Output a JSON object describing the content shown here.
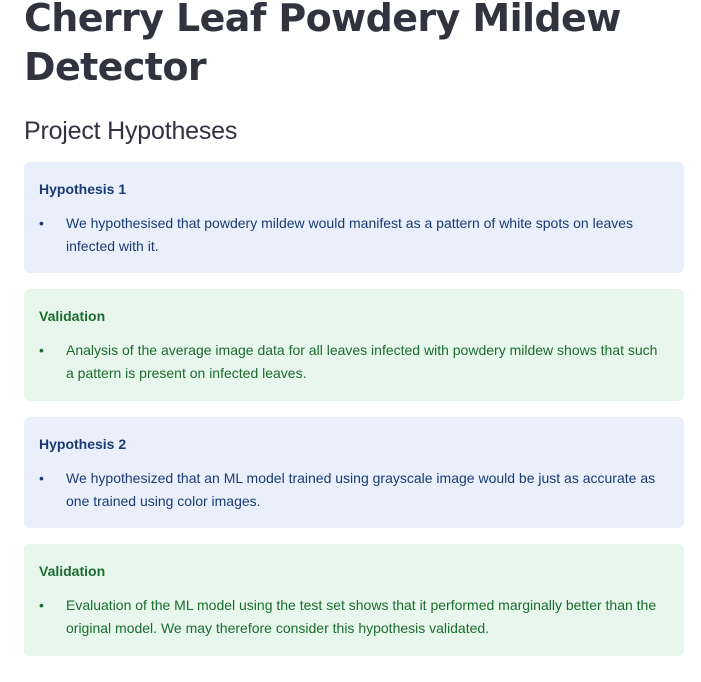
{
  "page": {
    "title": "Cherry Leaf Powdery Mildew Detector",
    "section_heading": "Project Hypotheses"
  },
  "cards": [
    {
      "heading": "Hypothesis 1",
      "bullet": "We hypothesised that powdery mildew would manifest as a pattern of white spots on leaves infected with it.",
      "bullet_symbol": "•",
      "color": "#e9f0fb"
    },
    {
      "heading": "Validation",
      "bullet": "Analysis of the average image data for all leaves infected with powdery mildew shows that such a pattern is present on infected leaves.",
      "bullet_symbol": "•",
      "color": "#e8f7ec"
    },
    {
      "heading": "Hypothesis 2",
      "bullet": "We hypothesized that an ML model trained using grayscale image would be just as accurate as one trained using color images.",
      "bullet_symbol": "•",
      "color": "#e9f0fb"
    },
    {
      "heading": "Validation",
      "bullet": "Evaluation of the ML model using the test set shows that it performed marginally better than the original model. We may therefore consider this hypothesis validated.",
      "bullet_symbol": "•",
      "color": "#e8f7ec"
    }
  ]
}
